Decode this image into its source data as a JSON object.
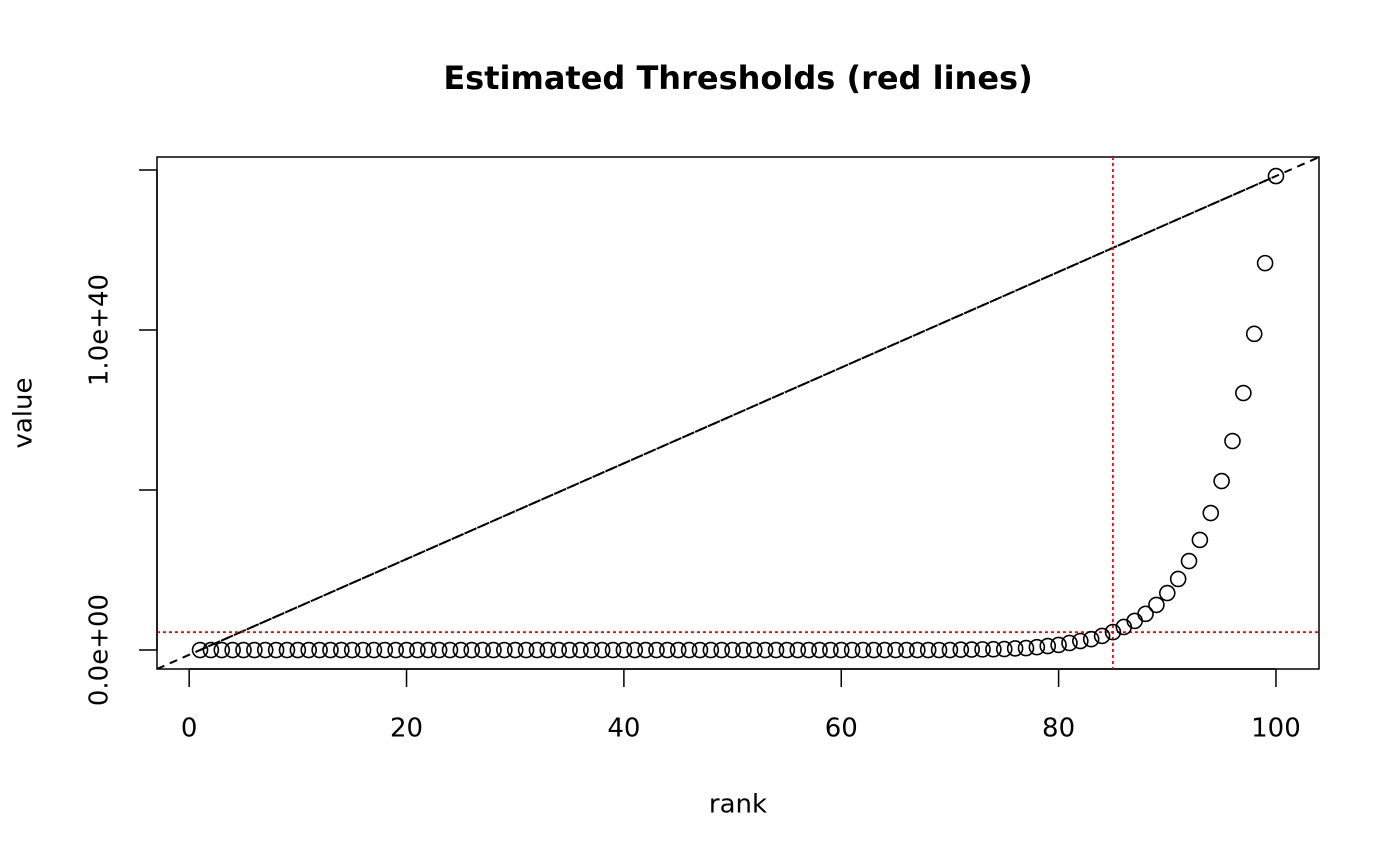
{
  "chart_data": {
    "type": "scatter",
    "title": "Estimated Thresholds (red lines)",
    "x_label": "rank",
    "y_label": "value",
    "x": [
      1,
      2,
      3,
      4,
      5,
      6,
      7,
      8,
      9,
      10,
      11,
      12,
      13,
      14,
      15,
      16,
      17,
      18,
      19,
      20,
      21,
      22,
      23,
      24,
      25,
      26,
      27,
      28,
      29,
      30,
      31,
      32,
      33,
      34,
      35,
      36,
      37,
      38,
      39,
      40,
      41,
      42,
      43,
      44,
      45,
      46,
      47,
      48,
      49,
      50,
      51,
      52,
      53,
      54,
      55,
      56,
      57,
      58,
      59,
      60,
      61,
      62,
      63,
      64,
      65,
      66,
      67,
      68,
      69,
      70,
      71,
      72,
      73,
      74,
      75,
      76,
      77,
      78,
      79,
      80,
      81,
      82,
      83,
      84,
      85,
      86,
      87,
      88,
      89,
      90,
      91,
      92,
      93,
      94,
      95,
      96,
      97,
      98,
      99,
      100
    ],
    "values": [
      0,
      0,
      0,
      0,
      0,
      0,
      0,
      0,
      0,
      0,
      0,
      0,
      0,
      0,
      0,
      0,
      0,
      0,
      0,
      0,
      0,
      0,
      0,
      0,
      0,
      0,
      0,
      0,
      0,
      0,
      0,
      0,
      0,
      0,
      0,
      0,
      0,
      0,
      0,
      0,
      0,
      0,
      0,
      0,
      0,
      0,
      0,
      0,
      0,
      0,
      0,
      0,
      0,
      0,
      0,
      0,
      0,
      0,
      0,
      0,
      0,
      0,
      0,
      0,
      0,
      0,
      0,
      0,
      0,
      0,
      1.2e+37,
      1.5e+37,
      2e+37,
      2.5e+37,
      3e+37,
      5e+37,
      6e+37,
      9e+37,
      1.25e+38,
      1.6e+38,
      2.2e+38,
      2.8e+38,
      3.4e+38,
      4.4e+38,
      5.6e+38,
      7.2e+38,
      9.1e+38,
      1.13e+39,
      1.41e+39,
      1.78e+39,
      2.22e+39,
      2.78e+39,
      3.44e+39,
      4.28e+39,
      5.28e+39,
      6.53e+39,
      8.03e+39,
      9.88e+39,
      1.209e+40,
      1.481e+40
    ],
    "color": "#000000",
    "xlim": [
      -2.96,
      103.96
    ],
    "ylim": [
      -5.93e+38,
      1.5406e+40
    ],
    "xticks": [
      0,
      20,
      40,
      60,
      80,
      100
    ],
    "yticks": [
      {
        "value": 0,
        "label": "0.0e+00"
      },
      {
        "value": 1e+40,
        "label": "1.0e+40"
      }
    ],
    "yticks_unlabeled": [
      5e+39,
      1.5e+40
    ],
    "reference_line": {
      "x": [
        1,
        100
      ],
      "y": [
        0,
        1.481e+40
      ],
      "color": "#000000",
      "style": "dashed"
    },
    "thresholds": {
      "x": 85,
      "y": 5.6e+38,
      "color": "#ff0000",
      "style": "dotted"
    }
  }
}
